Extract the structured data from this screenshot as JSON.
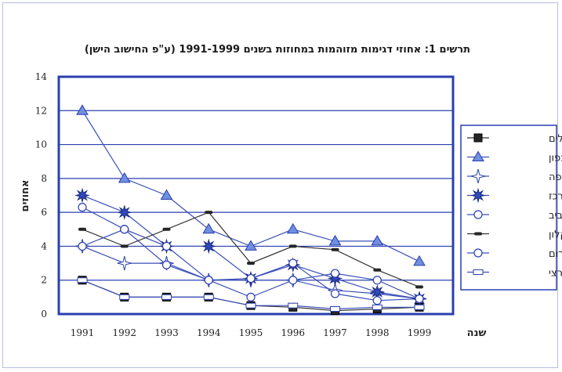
{
  "chart_data": {
    "type": "line",
    "title": "תרשים 1: אחוזי דגימות מזוהמות במחוזות בשנים 1991-1999  (ע\"פ החישוב הישן)",
    "xlabel": "שנה",
    "ylabel": "אחוזים",
    "x": [
      "1991",
      "1992",
      "1993",
      "1994",
      "1995",
      "1996",
      "1997",
      "1998",
      "1999"
    ],
    "ylim": [
      0,
      14
    ],
    "yticks": [
      0,
      2,
      4,
      6,
      8,
      10,
      12,
      14
    ],
    "grid": true,
    "legend_position": "right",
    "series": [
      {
        "name": "ירושלים",
        "marker": "square",
        "values": [
          2,
          1,
          1,
          1,
          0.5,
          0.4,
          0.2,
          0.3,
          0.4
        ]
      },
      {
        "name": "צפון",
        "marker": "triangle",
        "values": [
          12,
          8,
          7,
          5,
          4,
          5,
          4.3,
          4.3,
          3.1
        ]
      },
      {
        "name": "חיפה",
        "marker": "star4",
        "values": [
          4,
          3,
          3,
          2,
          2,
          2,
          1.4,
          1.2,
          0.9
        ]
      },
      {
        "name": "מרכז",
        "marker": "star8",
        "values": [
          7,
          6,
          4,
          4,
          2.1,
          2.9,
          2.1,
          1.3,
          0.9
        ]
      },
      {
        "name": "תל-אביב",
        "marker": "circle",
        "values": [
          6.3,
          5,
          2.9,
          2,
          2.1,
          3,
          1.2,
          0.8,
          0.9
        ]
      },
      {
        "name": "אשקלון",
        "marker": "dash",
        "values": [
          5,
          4,
          5,
          6,
          3,
          4,
          3.8,
          2.6,
          1.6
        ]
      },
      {
        "name": "דרום",
        "marker": "circle",
        "values": [
          4,
          5,
          4,
          2,
          1,
          2,
          2.4,
          2,
          0.9
        ]
      },
      {
        "name": "סיכום ארצי",
        "marker": "hline",
        "values": [
          2,
          1,
          1,
          1,
          0.5,
          0.5,
          0.3,
          0.4,
          0.4
        ]
      }
    ]
  }
}
